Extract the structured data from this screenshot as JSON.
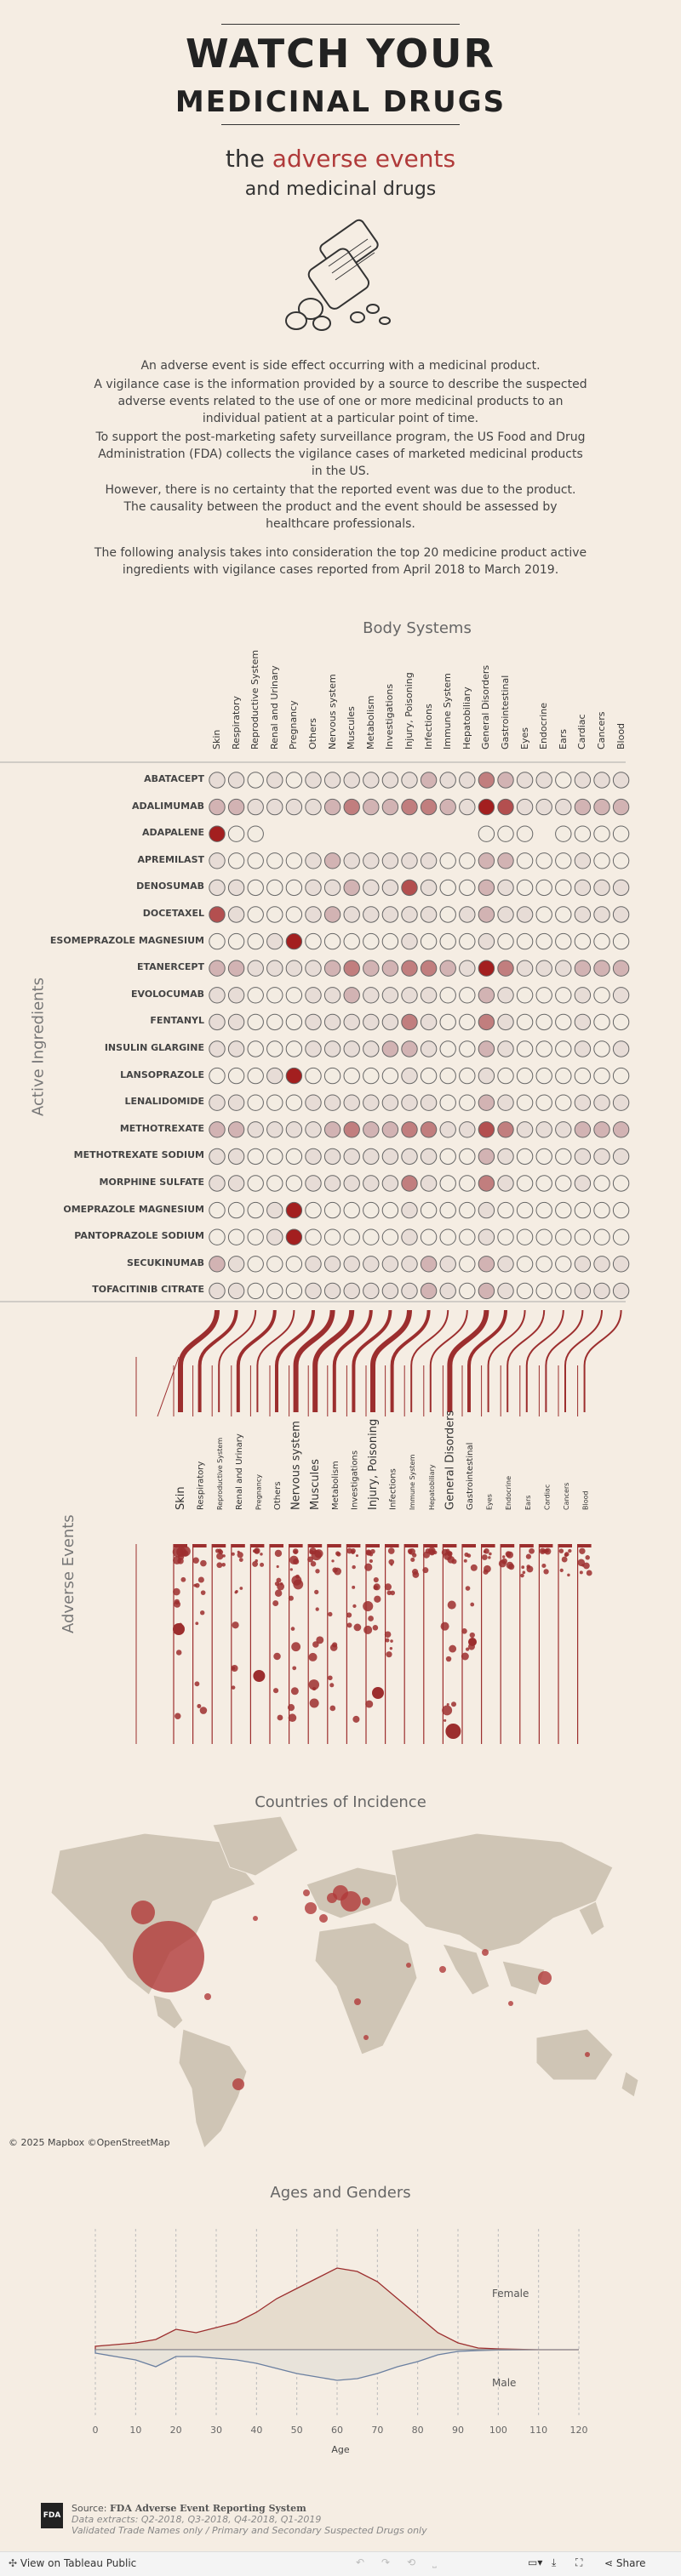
{
  "header": {
    "title_line1": "WATCH YOUR",
    "title_line2": "MEDICINAL DRUGS",
    "subtitle_pre": "the",
    "subtitle_red": "adverse events",
    "subtitle_line2": "and medicinal drugs"
  },
  "intro": {
    "p1": "An adverse event is side effect occurring with a medicinal product.",
    "p2": "A vigilance case is the information provided by a source to describe the suspected adverse events related to the use of one or more medicinal products to an individual patient at a particular point of time.",
    "p3": "To support the post-marketing safety surveillance program, the US Food and Drug Administration (FDA) collects the vigilance cases of marketed medicinal products in the US.",
    "p4": "However, there is no certainty that the reported event was due to the product. The causality between the product and the event should be assessed by healthcare professionals.",
    "p5": "The following analysis takes into consideration the top 20 medicine product active ingredients with vigilance cases reported from April 2018 to March 2019."
  },
  "matrix": {
    "title": "Body Systems",
    "y_axis_label": "Active Ingredients",
    "columns": [
      "Skin",
      "Respiratory",
      "Reproductive System",
      "Renal and Urinary",
      "Pregnancy",
      "Others",
      "Nervous system",
      "Muscules",
      "Metabolism",
      "Investigations",
      "Injury, Poisoning",
      "Infections",
      "Immune System",
      "Hepatobiliary",
      "General Disorders",
      "Gastrointestinal",
      "Eyes",
      "Endocrine",
      "Ears",
      "Cardiac",
      "Cancers",
      "Blood"
    ],
    "rows": [
      "ABATACEPT",
      "ADALIMUMAB",
      "ADAPALENE",
      "APREMILAST",
      "DENOSUMAB",
      "DOCETAXEL",
      "ESOMEPRAZOLE MAGNESIUM",
      "ETANERCEPT",
      "EVOLOCUMAB",
      "FENTANYL",
      "INSULIN GLARGINE",
      "LANSOPRAZOLE",
      "LENALIDOMIDE",
      "METHOTREXATE",
      "METHOTREXATE SODIUM",
      "MORPHINE SULFATE",
      "OMEPRAZOLE MAGNESIUM",
      "PANTOPRAZOLE SODIUM",
      "SECUKINUMAB",
      "TOFACITINIB CITRATE"
    ],
    "levels": [
      [
        1,
        1,
        0,
        1,
        0,
        1,
        1,
        1,
        1,
        1,
        1,
        2,
        1,
        1,
        3,
        2,
        1,
        1,
        0,
        1,
        1,
        1
      ],
      [
        2,
        2,
        1,
        1,
        1,
        1,
        2,
        3,
        2,
        2,
        3,
        3,
        2,
        1,
        5,
        4,
        1,
        1,
        1,
        2,
        2,
        2
      ],
      [
        5,
        0,
        0,
        -1,
        -1,
        -1,
        -1,
        -1,
        -1,
        -1,
        -1,
        -1,
        -1,
        -1,
        0,
        0,
        0,
        -1,
        0,
        0,
        0,
        0
      ],
      [
        1,
        0,
        0,
        0,
        0,
        1,
        2,
        1,
        1,
        1,
        1,
        1,
        0,
        0,
        2,
        2,
        0,
        0,
        0,
        1,
        0,
        0
      ],
      [
        1,
        1,
        0,
        0,
        0,
        1,
        1,
        2,
        1,
        1,
        4,
        1,
        0,
        0,
        2,
        1,
        0,
        0,
        0,
        1,
        1,
        1
      ],
      [
        4,
        1,
        0,
        0,
        0,
        1,
        2,
        1,
        1,
        1,
        1,
        1,
        0,
        1,
        2,
        1,
        1,
        0,
        0,
        1,
        1,
        1
      ],
      [
        0,
        0,
        0,
        1,
        5,
        0,
        0,
        0,
        0,
        0,
        1,
        0,
        0,
        0,
        1,
        0,
        0,
        0,
        0,
        0,
        0,
        0
      ],
      [
        2,
        2,
        1,
        1,
        1,
        1,
        2,
        3,
        2,
        2,
        3,
        3,
        2,
        1,
        5,
        3,
        1,
        1,
        1,
        2,
        2,
        2
      ],
      [
        1,
        1,
        0,
        0,
        0,
        1,
        1,
        2,
        1,
        1,
        1,
        1,
        0,
        0,
        2,
        1,
        0,
        0,
        0,
        1,
        0,
        1
      ],
      [
        1,
        1,
        0,
        0,
        0,
        1,
        1,
        1,
        1,
        1,
        3,
        1,
        0,
        0,
        3,
        1,
        0,
        0,
        0,
        1,
        0,
        0
      ],
      [
        1,
        1,
        0,
        0,
        0,
        1,
        1,
        1,
        1,
        2,
        2,
        1,
        0,
        0,
        2,
        1,
        0,
        0,
        0,
        1,
        0,
        1
      ],
      [
        0,
        0,
        0,
        1,
        5,
        0,
        0,
        0,
        0,
        0,
        1,
        0,
        0,
        0,
        1,
        0,
        0,
        0,
        0,
        0,
        0,
        0
      ],
      [
        1,
        1,
        0,
        0,
        0,
        1,
        1,
        1,
        1,
        1,
        1,
        1,
        0,
        0,
        2,
        1,
        0,
        0,
        0,
        1,
        1,
        1
      ],
      [
        2,
        2,
        1,
        1,
        1,
        1,
        2,
        3,
        2,
        2,
        3,
        3,
        1,
        1,
        4,
        3,
        1,
        1,
        1,
        2,
        2,
        2
      ],
      [
        1,
        1,
        0,
        0,
        0,
        1,
        1,
        1,
        1,
        1,
        1,
        1,
        0,
        0,
        2,
        1,
        0,
        0,
        0,
        1,
        1,
        1
      ],
      [
        1,
        1,
        0,
        0,
        0,
        1,
        1,
        1,
        1,
        1,
        3,
        1,
        0,
        0,
        3,
        1,
        0,
        0,
        0,
        1,
        0,
        0
      ],
      [
        0,
        0,
        0,
        1,
        5,
        0,
        0,
        0,
        0,
        0,
        1,
        0,
        0,
        0,
        1,
        0,
        0,
        0,
        0,
        0,
        0,
        0
      ],
      [
        0,
        0,
        0,
        1,
        5,
        0,
        0,
        0,
        0,
        0,
        1,
        0,
        0,
        0,
        1,
        0,
        0,
        0,
        0,
        0,
        0,
        0
      ],
      [
        2,
        1,
        0,
        0,
        0,
        1,
        1,
        1,
        1,
        1,
        1,
        2,
        1,
        0,
        2,
        1,
        0,
        0,
        0,
        1,
        1,
        1
      ],
      [
        1,
        1,
        0,
        0,
        0,
        1,
        1,
        1,
        1,
        1,
        1,
        2,
        1,
        0,
        2,
        1,
        0,
        0,
        0,
        1,
        1,
        1
      ]
    ]
  },
  "events": {
    "y_axis_label": "Adverse Events",
    "columns": [
      "Skin",
      "Respiratory",
      "Reproductive System",
      "Renal and Urinary",
      "Pregnancy",
      "Others",
      "Nervous system",
      "Muscules",
      "Metabolism",
      "Investigations",
      "Injury, Poisoning",
      "Infections",
      "Immune System",
      "Hepatobiliary",
      "General Disorders",
      "Gastrointestinal",
      "Eyes",
      "Endocrine",
      "Ears",
      "Cardiac",
      "Cancers",
      "Blood"
    ],
    "emphasis": [
      3,
      2,
      1,
      2,
      1,
      2,
      3,
      3,
      2,
      2,
      3,
      2,
      1,
      1,
      3,
      2,
      1,
      1,
      1,
      1,
      1,
      1
    ]
  },
  "map": {
    "title": "Countries of Incidence",
    "attribution": "© 2025 Mapbox  ©OpenStreetMap"
  },
  "ages": {
    "title": "Ages and Genders",
    "female_label": "Female",
    "male_label": "Male",
    "x_label": "Age",
    "x_ticks": [
      "0",
      "10",
      "20",
      "30",
      "40",
      "50",
      "60",
      "70",
      "80",
      "90",
      "100",
      "110",
      "120"
    ]
  },
  "chart_data": {
    "type": "area",
    "title": "Ages and Genders",
    "xlabel": "Age",
    "ylabel": "",
    "xlim": [
      0,
      120
    ],
    "x": [
      0,
      5,
      10,
      15,
      20,
      25,
      30,
      35,
      40,
      45,
      50,
      55,
      60,
      65,
      70,
      75,
      80,
      85,
      90,
      95,
      100,
      110,
      120
    ],
    "series": [
      {
        "name": "Female",
        "values": [
          2,
          3,
          4,
          6,
          12,
          10,
          13,
          16,
          22,
          30,
          36,
          42,
          48,
          46,
          40,
          30,
          20,
          10,
          4,
          1,
          0.5,
          0,
          0
        ]
      },
      {
        "name": "Male",
        "values": [
          2,
          4,
          6,
          10,
          4,
          4,
          5,
          6,
          8,
          11,
          14,
          16,
          18,
          17,
          14,
          10,
          7,
          3,
          1,
          0.5,
          0.2,
          0,
          0
        ]
      }
    ]
  },
  "footer": {
    "source_label": "Source:",
    "source_value": "FDA Adverse Event Reporting System",
    "line2": "Data extracts: Q2-2018, Q3-2018, Q4-2018, Q1-2019",
    "line3": "Validated Trade Names only / Primary and Secondary Suspected Drugs only",
    "logo": "FDA"
  },
  "toolbar": {
    "view_label": "View on Tableau Public",
    "share_label": "Share"
  },
  "colors": {
    "background": "#f5ede3",
    "accent": "#b03a3a",
    "land": "#cfc5b5"
  }
}
